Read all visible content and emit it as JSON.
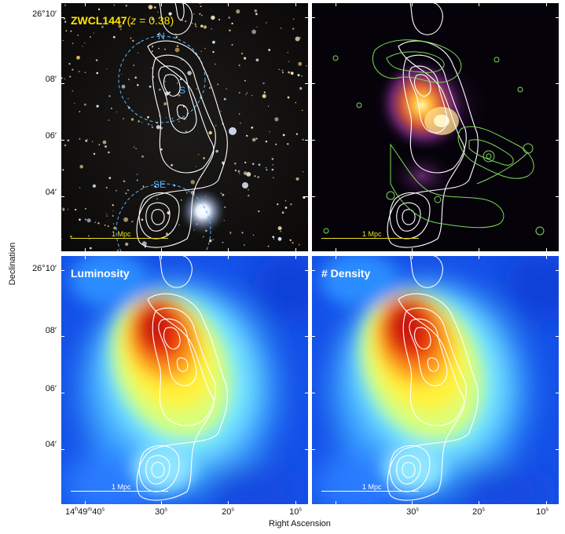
{
  "panels": {
    "optical": {
      "title_name": "ZWCL1447",
      "title_z_open": "(",
      "title_z_var": "z",
      "title_z_rest": " = 0.38)",
      "labels": {
        "n": "N",
        "s": "S",
        "se": "SE"
      },
      "scale_bar": "1 Mpc"
    },
    "xray": {
      "scale_bar": "1 Mpc"
    },
    "luminosity": {
      "title": "Luminosity",
      "scale_bar": "1 Mpc"
    },
    "density": {
      "title": "# Density",
      "scale_bar": "1 Mpc"
    }
  },
  "axes": {
    "ylabel": "Declination",
    "xlabel": "Right Ascension",
    "dec_ticks_top": [
      "26°10′",
      "08′",
      "06′",
      "04′"
    ],
    "dec_ticks_bottom": [
      "26°10′",
      "08′",
      "06′",
      "04′"
    ],
    "ra_ticks_left": [
      {
        "h": "14",
        "hu": "h",
        "m": "49",
        "mu": "m",
        "s": "40",
        "su": "s"
      },
      {
        "s": "30",
        "su": "s"
      },
      {
        "s": "20",
        "su": "s"
      },
      {
        "s": "10",
        "su": "s"
      }
    ],
    "ra_ticks_right": [
      {
        "s": "30",
        "su": "s"
      },
      {
        "s": "20",
        "su": "s"
      },
      {
        "s": "10",
        "su": "s"
      }
    ]
  },
  "colors": {
    "title_yellow": "#ffe600",
    "scale_bar_yellow": "#e8e020",
    "contour_white": "#ffffff",
    "radio_green": "#7cd957",
    "circle_blue": "#58b4ff"
  }
}
